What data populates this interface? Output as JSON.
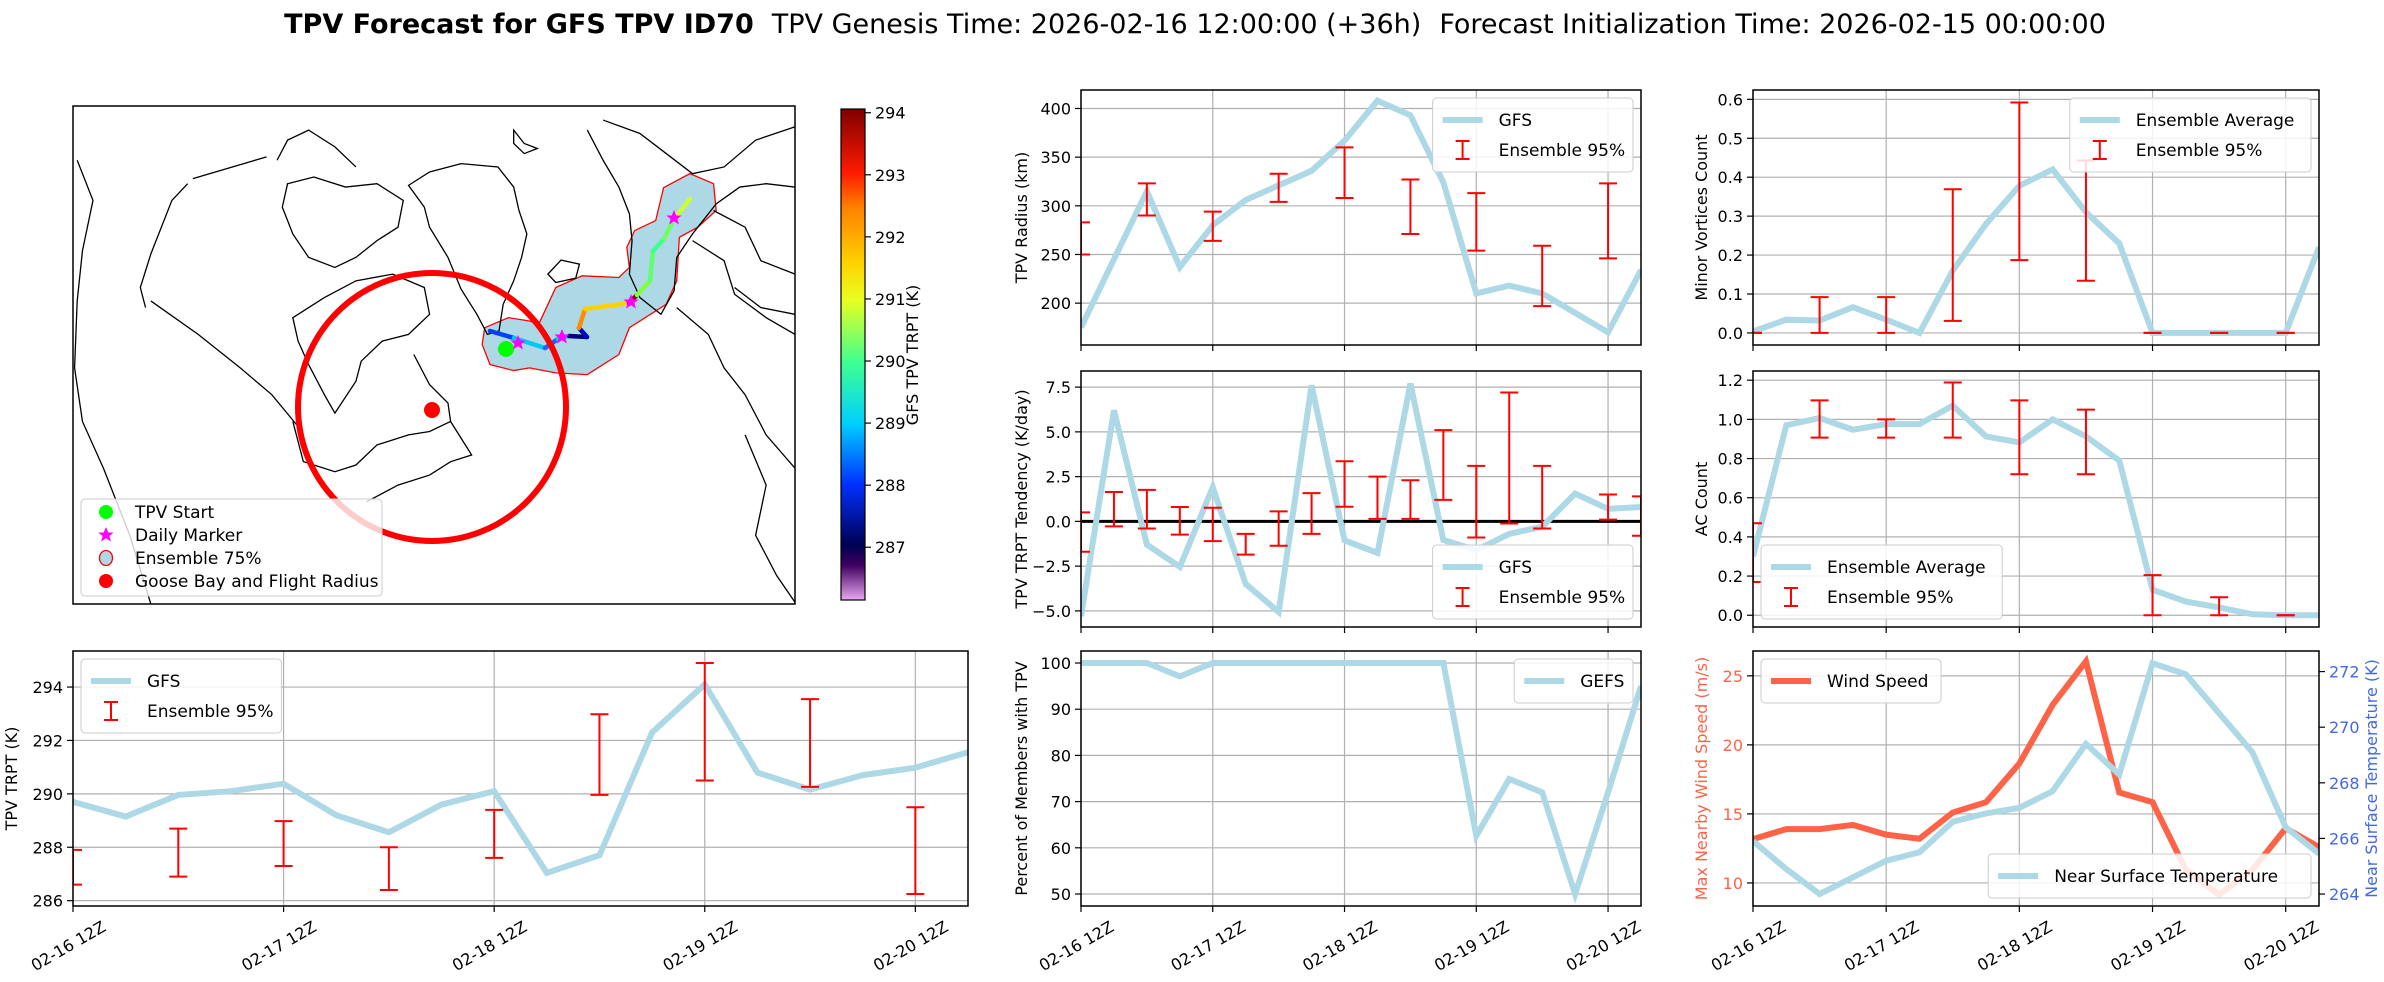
{
  "figure": {
    "title_bold": "TPV Forecast for GFS TPV ID70",
    "title_genesis": "TPV Genesis Time: 2026-02-16 12:00:00 (+36h)",
    "title_init": "Forecast Initialization Time: 2026-02-15 00:00:00"
  },
  "colors": {
    "gfs_line": "#add8e6",
    "ensemble_bar": "#ff0000",
    "wind": "#ff6347",
    "temp_axis": "#4169e1",
    "ensemble_area": "#add8e6",
    "flight_radius": "#ff0000"
  },
  "map": {
    "legend": [
      "TPV Start",
      "Daily Marker",
      "Ensemble 75%",
      "Goose Bay and Flight Radius"
    ],
    "legend_icons": [
      "green-dot-icon",
      "magenta-star-icon",
      "blue-circle-icon",
      "red-dot-icon"
    ],
    "colorbar": {
      "label": "GFS TPV TRPT (K)",
      "ticks": [
        "287",
        "288",
        "289",
        "290",
        "291",
        "292",
        "293",
        "294"
      ],
      "range": [
        286.15,
        294.06
      ],
      "colormap": [
        "#e8a8f0",
        "#400060",
        "#000050",
        "#0030ff",
        "#00d0ff",
        "#40ff90",
        "#e8ff20",
        "#ffd000",
        "#ff8000",
        "#ff1a00",
        "#7f0000"
      ]
    }
  },
  "chart_data": [
    {
      "id": "trpt",
      "type": "line",
      "ylabel": "TPV TRPT (K)",
      "x": [
        "02-16 12Z",
        "02-16 18Z",
        "02-17 00Z",
        "02-17 06Z",
        "02-17 12Z",
        "02-17 18Z",
        "02-18 00Z",
        "02-18 06Z",
        "02-18 12Z",
        "02-18 18Z",
        "02-19 00Z",
        "02-19 06Z",
        "02-19 12Z",
        "02-19 18Z",
        "02-20 00Z",
        "02-20 06Z",
        "02-20 12Z",
        "02-20 18Z"
      ],
      "xticks": [
        "02-16 12Z",
        "02-17 12Z",
        "02-18 12Z",
        "02-19 12Z",
        "02-20 12Z"
      ],
      "yticks": [
        "286",
        "288",
        "290",
        "292",
        "294"
      ],
      "ylim": [
        285.8,
        295.35
      ],
      "grid": true,
      "legend_loc": "upper left",
      "series": [
        {
          "name": "GFS",
          "values": [
            289.7,
            289.15,
            289.96,
            290.1,
            290.38,
            289.2,
            288.56,
            289.6,
            290.1,
            287.04,
            287.7,
            292.3,
            294.1,
            290.8,
            290.16,
            290.7,
            290.98,
            291.56
          ]
        }
      ],
      "errorbars": {
        "name": "Ensemble 95%",
        "low": [
          286.6,
          null,
          286.9,
          null,
          287.3,
          null,
          286.4,
          null,
          287.6,
          null,
          289.96,
          null,
          290.5,
          null,
          290.26,
          null,
          286.25,
          null
        ],
        "high": [
          287.9,
          null,
          288.7,
          null,
          288.98,
          null,
          288.0,
          null,
          289.4,
          null,
          292.98,
          null,
          294.9,
          null,
          293.55,
          null,
          289.5,
          null
        ]
      }
    },
    {
      "id": "radius",
      "type": "line",
      "ylabel": "TPV Radius (km)",
      "x": [
        "02-16 12Z",
        "02-16 18Z",
        "02-17 00Z",
        "02-17 06Z",
        "02-17 12Z",
        "02-17 18Z",
        "02-18 00Z",
        "02-18 06Z",
        "02-18 12Z",
        "02-18 18Z",
        "02-19 00Z",
        "02-19 06Z",
        "02-19 12Z",
        "02-19 18Z",
        "02-20 00Z",
        "02-20 06Z",
        "02-20 12Z",
        "02-20 18Z"
      ],
      "xticks": [
        "02-16 12Z",
        "02-17 12Z",
        "02-18 12Z",
        "02-19 12Z",
        "02-20 12Z"
      ],
      "xticklabels_shown": false,
      "yticks": [
        "200",
        "250",
        "300",
        "350",
        "400"
      ],
      "ylim": [
        157,
        419
      ],
      "grid": true,
      "legend_loc": "upper right",
      "series": [
        {
          "name": "GFS",
          "values": [
            175,
            245,
            315,
            237,
            280,
            306,
            321,
            336,
            367,
            408,
            393,
            324,
            210,
            218,
            210,
            190,
            170,
            234
          ]
        }
      ],
      "errorbars": {
        "name": "Ensemble 95%",
        "low": [
          250,
          null,
          290,
          null,
          264,
          null,
          304,
          null,
          308,
          null,
          271,
          null,
          254,
          null,
          197,
          null,
          246,
          null
        ],
        "high": [
          283,
          null,
          323,
          null,
          294,
          null,
          333,
          null,
          360,
          null,
          327,
          null,
          313,
          null,
          259,
          null,
          323,
          null
        ]
      }
    },
    {
      "id": "tendency",
      "type": "line",
      "ylabel": "TPV TRPT Tendency (K/day)",
      "x": [
        "02-16 12Z",
        "02-16 18Z",
        "02-17 00Z",
        "02-17 06Z",
        "02-17 12Z",
        "02-17 18Z",
        "02-18 00Z",
        "02-18 06Z",
        "02-18 12Z",
        "02-18 18Z",
        "02-19 00Z",
        "02-19 06Z",
        "02-19 12Z",
        "02-19 18Z",
        "02-20 00Z",
        "02-20 06Z",
        "02-20 12Z",
        "02-20 18Z"
      ],
      "xticks": [
        "02-16 12Z",
        "02-17 12Z",
        "02-18 12Z",
        "02-19 12Z",
        "02-20 12Z"
      ],
      "xticklabels_shown": false,
      "yticks": [
        "−5.0",
        "−2.5",
        "0.0",
        "2.5",
        "5.0",
        "7.5"
      ],
      "ylim": [
        -5.9,
        8.4
      ],
      "grid": true,
      "hline": 0,
      "legend_loc": "lower right",
      "series": [
        {
          "name": "GFS",
          "values": [
            -5.3,
            6.2,
            -1.3,
            -2.54,
            1.9,
            -3.5,
            -5.06,
            7.6,
            -1.06,
            -1.76,
            7.7,
            -1.04,
            -1.6,
            -0.7,
            -0.3,
            1.55,
            0.7,
            0.8
          ]
        }
      ],
      "errorbars": {
        "name": "Ensemble 95%",
        "low": [
          -1.7,
          -0.28,
          -0.4,
          -0.74,
          -1.1,
          -1.86,
          -1.36,
          -0.7,
          0.82,
          0.14,
          0.14,
          1.2,
          -0.9,
          -0.12,
          -0.4,
          null,
          0.1,
          -0.8
        ],
        "high": [
          0.5,
          1.64,
          1.76,
          0.8,
          0.76,
          -0.7,
          0.56,
          1.58,
          3.36,
          2.5,
          2.3,
          5.1,
          3.1,
          7.2,
          3.1,
          null,
          1.5,
          1.4
        ]
      }
    },
    {
      "id": "percent",
      "type": "line",
      "ylabel": "Percent of Members with TPV",
      "x": [
        "02-16 12Z",
        "02-16 18Z",
        "02-17 00Z",
        "02-17 06Z",
        "02-17 12Z",
        "02-17 18Z",
        "02-18 00Z",
        "02-18 06Z",
        "02-18 12Z",
        "02-18 18Z",
        "02-19 00Z",
        "02-19 06Z",
        "02-19 12Z",
        "02-19 18Z",
        "02-20 00Z",
        "02-20 06Z",
        "02-20 12Z",
        "02-20 18Z"
      ],
      "xticks": [
        "02-16 12Z",
        "02-17 12Z",
        "02-18 12Z",
        "02-19 12Z",
        "02-20 12Z"
      ],
      "yticks": [
        "50",
        "60",
        "70",
        "80",
        "90",
        "100"
      ],
      "ylim": [
        47.4,
        102.6
      ],
      "grid": true,
      "legend_loc": "upper right",
      "series": [
        {
          "name": "GEFS",
          "values": [
            100,
            100,
            100,
            97.1,
            100,
            100,
            100,
            100,
            100,
            100,
            100,
            100,
            62.6,
            74.9,
            72,
            50,
            72,
            95
          ]
        }
      ]
    },
    {
      "id": "minor_vortices",
      "type": "line",
      "ylabel": "Minor Vortices Count",
      "x": [
        "02-16 12Z",
        "02-16 18Z",
        "02-17 00Z",
        "02-17 06Z",
        "02-17 12Z",
        "02-17 18Z",
        "02-18 00Z",
        "02-18 06Z",
        "02-18 12Z",
        "02-18 18Z",
        "02-19 00Z",
        "02-19 06Z",
        "02-19 12Z",
        "02-19 18Z",
        "02-20 00Z",
        "02-20 06Z",
        "02-20 12Z",
        "02-20 18Z"
      ],
      "xticks": [
        "02-16 12Z",
        "02-17 12Z",
        "02-18 12Z",
        "02-19 12Z",
        "02-20 12Z"
      ],
      "xticklabels_shown": false,
      "yticks": [
        "0.0",
        "0.1",
        "0.2",
        "0.3",
        "0.4",
        "0.5",
        "0.6"
      ],
      "ylim": [
        -0.031,
        0.624
      ],
      "grid": true,
      "legend_loc": "upper right",
      "series": [
        {
          "name": "Ensemble Average",
          "values": [
            0.004,
            0.034,
            0.032,
            0.066,
            0.034,
            0,
            0.16,
            0.28,
            0.378,
            0.42,
            0.31,
            0.23,
            0,
            0,
            0,
            0,
            0,
            0.22
          ]
        }
      ],
      "errorbars": {
        "name": "Ensemble 95%",
        "low": [
          0,
          null,
          0,
          null,
          0,
          null,
          0.031,
          null,
          0.187,
          null,
          0.134,
          null,
          0,
          null,
          0,
          null,
          0,
          null
        ],
        "high": [
          0,
          null,
          0.092,
          null,
          0.092,
          null,
          0.369,
          null,
          0.592,
          null,
          0.443,
          null,
          0,
          null,
          0,
          null,
          0,
          null
        ]
      }
    },
    {
      "id": "ac_count",
      "type": "line",
      "ylabel": "AC Count",
      "x": [
        "02-16 12Z",
        "02-16 18Z",
        "02-17 00Z",
        "02-17 06Z",
        "02-17 12Z",
        "02-17 18Z",
        "02-18 00Z",
        "02-18 06Z",
        "02-18 12Z",
        "02-18 18Z",
        "02-19 00Z",
        "02-19 06Z",
        "02-19 12Z",
        "02-19 18Z",
        "02-20 00Z",
        "02-20 06Z",
        "02-20 12Z",
        "02-20 18Z"
      ],
      "xticks": [
        "02-16 12Z",
        "02-17 12Z",
        "02-18 12Z",
        "02-19 12Z",
        "02-20 12Z"
      ],
      "xticklabels_shown": false,
      "yticks": [
        "0.0",
        "0.2",
        "0.4",
        "0.6",
        "0.8",
        "1.0",
        "1.2"
      ],
      "ylim": [
        -0.06,
        1.247
      ],
      "grid": true,
      "legend_loc": "lower left",
      "series": [
        {
          "name": "Ensemble Average",
          "values": [
            0.3,
            0.97,
            1.007,
            0.947,
            0.976,
            0.976,
            1.07,
            0.913,
            0.882,
            1.0,
            0.913,
            0.79,
            0.13,
            0.07,
            0.04,
            0.005,
            0,
            0
          ]
        }
      ],
      "errorbars": {
        "name": "Ensemble 95%",
        "low": [
          0.17,
          null,
          0.907,
          null,
          0.907,
          null,
          0.907,
          null,
          0.72,
          null,
          0.72,
          null,
          0,
          null,
          0,
          null,
          0,
          null
        ],
        "high": [
          0.47,
          null,
          1.097,
          null,
          1.0,
          null,
          1.188,
          null,
          1.097,
          null,
          1.05,
          null,
          0.205,
          null,
          0.092,
          null,
          0,
          null
        ]
      }
    },
    {
      "id": "wind_temp",
      "type": "line",
      "ylabel": "Max Nearby Wind Speed (m/s)",
      "ylabel_right": "Near Surface Temperature (K)",
      "x": [
        "02-16 12Z",
        "02-16 18Z",
        "02-17 00Z",
        "02-17 06Z",
        "02-17 12Z",
        "02-17 18Z",
        "02-18 00Z",
        "02-18 06Z",
        "02-18 12Z",
        "02-18 18Z",
        "02-19 00Z",
        "02-19 06Z",
        "02-19 12Z",
        "02-19 18Z",
        "02-20 00Z",
        "02-20 06Z",
        "02-20 12Z",
        "02-20 18Z"
      ],
      "xticks": [
        "02-16 12Z",
        "02-17 12Z",
        "02-18 12Z",
        "02-19 12Z",
        "02-20 12Z"
      ],
      "yticks": [
        "10",
        "15",
        "20",
        "25"
      ],
      "ylim": [
        8.33,
        26.8
      ],
      "yticks_right": [
        "264",
        "266",
        "268",
        "270",
        "272"
      ],
      "ylim_right": [
        263.57,
        272.74
      ],
      "grid": true,
      "series": [
        {
          "name": "Wind Speed",
          "axis": "left",
          "legend_loc": "upper left",
          "values": [
            13.17,
            13.9,
            13.9,
            14.2,
            13.5,
            13.2,
            15.1,
            15.85,
            18.65,
            22.9,
            26.05,
            16.55,
            15.85,
            10.95,
            9.15,
            10.95,
            13.96,
            12.6
          ]
        },
        {
          "name": "Near Surface Temperature",
          "axis": "right",
          "legend_loc": "lower right",
          "values": [
            265.9,
            264.9,
            264.0,
            264.6,
            265.2,
            265.5,
            266.6,
            266.9,
            267.1,
            267.7,
            269.4,
            268.3,
            272.3,
            271.9,
            270.5,
            269.1,
            266.4,
            265.45
          ]
        }
      ]
    }
  ]
}
